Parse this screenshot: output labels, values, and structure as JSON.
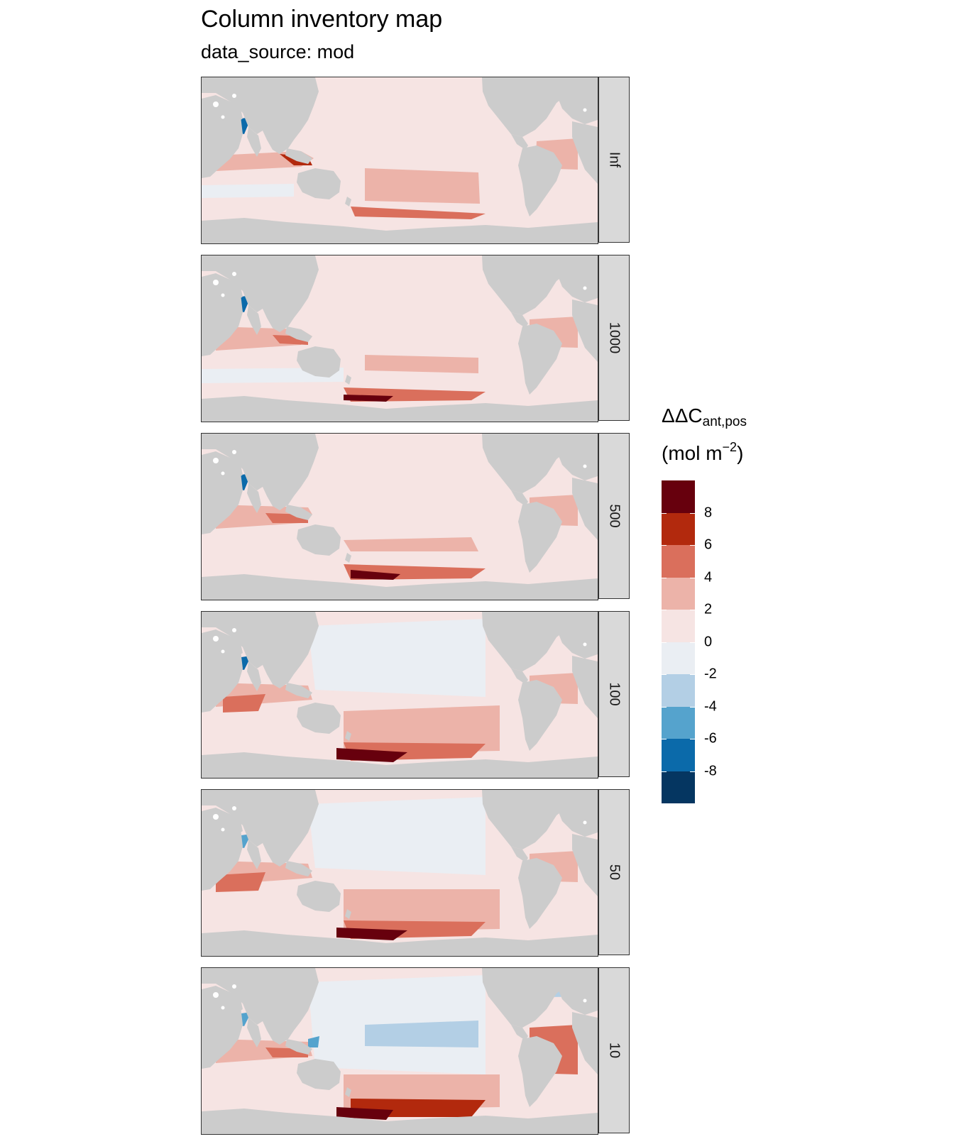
{
  "title": "Column inventory map",
  "subtitle": "data_source: mod",
  "panels": [
    {
      "label": "Inf"
    },
    {
      "label": "1000"
    },
    {
      "label": "500"
    },
    {
      "label": "100"
    },
    {
      "label": "50"
    },
    {
      "label": "10"
    }
  ],
  "legend": {
    "title_main": "ΔΔC",
    "title_sub": "ant,pos",
    "unit_main": "(mol m",
    "unit_sup": "−2",
    "unit_close": ")",
    "ticks": [
      "8",
      "6",
      "4",
      "2",
      "0",
      "-2",
      "-4",
      "-6",
      "-8"
    ],
    "colors": [
      "#67000d",
      "#b2290d",
      "#da6f5c",
      "#ecb3a9",
      "#f6e4e3",
      "#eaeef3",
      "#b3cfe5",
      "#55a3cd",
      "#0b6aaa",
      "#053661"
    ]
  },
  "colors": {
    "land": "#cccccc",
    "strip": "#d9d9d9",
    "ice": "#ffffff"
  }
}
